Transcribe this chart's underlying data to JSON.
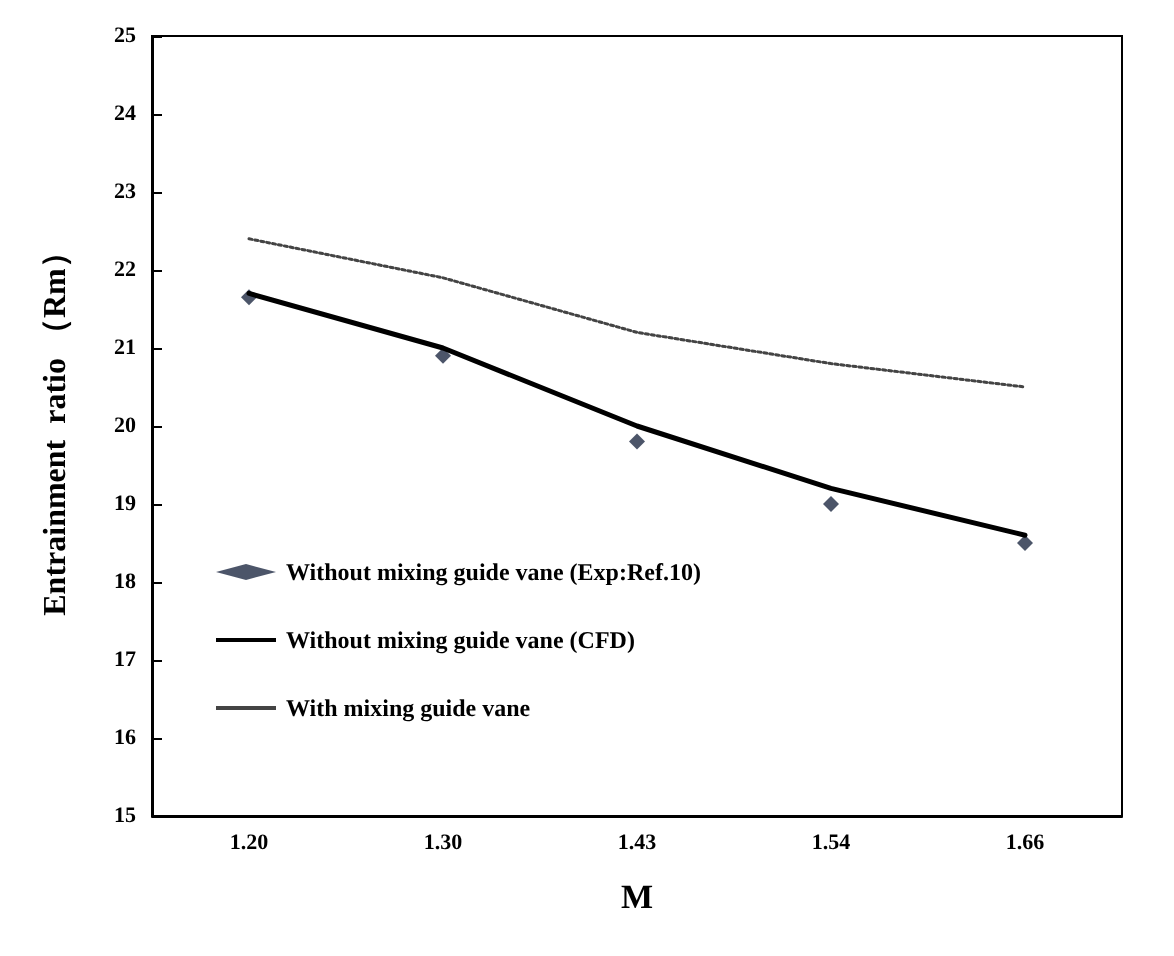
{
  "chart_data": {
    "type": "line",
    "xlabel": "M",
    "ylabel": "Entrainment  ratio （Rm）",
    "categories": [
      "1.20",
      "1.30",
      "1.43",
      "1.54",
      "1.66"
    ],
    "ylim": [
      15,
      25
    ],
    "yticks": [
      15,
      16,
      17,
      18,
      19,
      20,
      21,
      22,
      23,
      24,
      25
    ],
    "grid": false,
    "legend": "bottom left",
    "series": [
      {
        "name": "Without mixing guide vane (Exp:Ref.10)",
        "type": "scatter",
        "color": "#1f2a44",
        "marker": "diamond",
        "values": [
          21.65,
          20.9,
          19.8,
          19.0,
          18.5
        ]
      },
      {
        "name": "Without mixing guide vane (CFD)",
        "color": "#000000",
        "marker": "none",
        "line_style": "solid",
        "values": [
          21.7,
          21.0,
          20.0,
          19.2,
          18.6
        ]
      },
      {
        "name": "With mixing guide vane",
        "color": "#444444",
        "marker": "none",
        "line_style": "dotted",
        "values": [
          22.4,
          21.9,
          21.2,
          20.8,
          20.5
        ]
      }
    ]
  }
}
